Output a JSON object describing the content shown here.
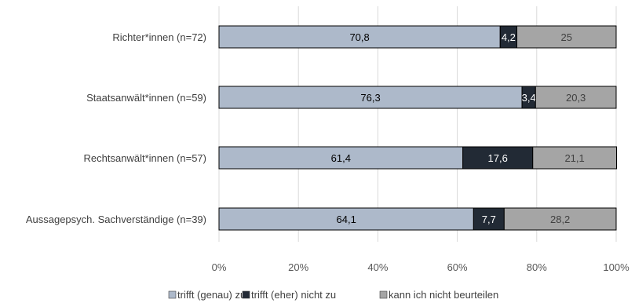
{
  "chart_data": {
    "type": "bar",
    "orientation": "horizontal",
    "stacked": true,
    "categories": [
      "Richter*innen (n=72)",
      "Staatsanwält*innen (n=59)",
      "Rechtsanwält*innen (n=57)",
      "Aussagepsych. Sachverständige (n=39)"
    ],
    "series": [
      {
        "name": "trifft (genau) zu",
        "color": "#adb9ca",
        "label_color": "#000000",
        "values": [
          70.8,
          76.3,
          61.4,
          64.1
        ],
        "labels": [
          "70,8",
          "76,3",
          "61,4",
          "64,1"
        ]
      },
      {
        "name": "trifft (eher) nicht zu",
        "color": "#222a35",
        "label_color": "#ffffff",
        "values": [
          4.2,
          3.4,
          17.6,
          7.7
        ],
        "labels": [
          "4,2",
          "3,4",
          "17,6",
          "7,7"
        ]
      },
      {
        "name": "kann ich nicht beurteilen",
        "color": "#a5a5a5",
        "label_color": "#404040",
        "values": [
          25,
          20.3,
          21.1,
          28.2
        ],
        "labels": [
          "25",
          "20,3",
          "21,1",
          "28,2"
        ]
      }
    ],
    "xlim": [
      0,
      100
    ],
    "x_ticks": [
      "0%",
      "20%",
      "40%",
      "60%",
      "80%",
      "100%"
    ],
    "grid": "vertical",
    "legend_position": "bottom"
  }
}
